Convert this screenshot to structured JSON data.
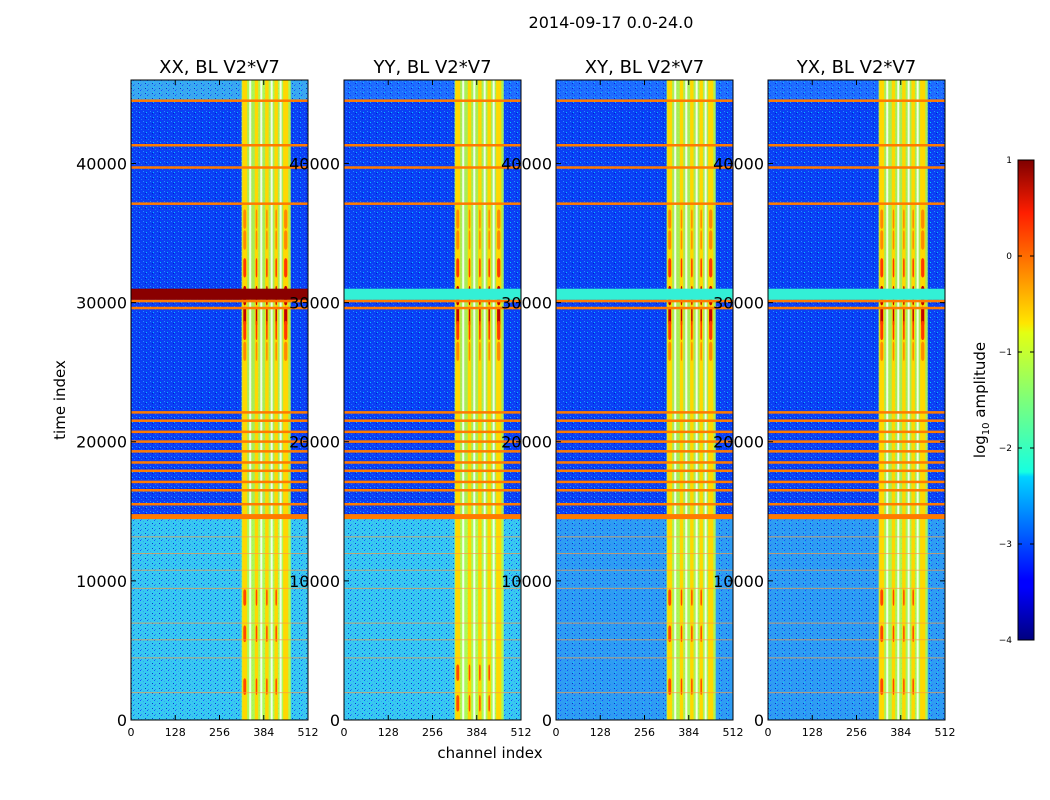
{
  "chart_data": {
    "type": "heatmap",
    "suptitle": "2014-09-17 0.0-24.0",
    "xlabel": "channel index",
    "ylabel": "time index",
    "xlim": [
      0,
      512
    ],
    "ylim": [
      0,
      46000
    ],
    "xticks": [
      0,
      128,
      256,
      384,
      512
    ],
    "xtick_labels": [
      "0",
      "128",
      "256",
      "384",
      "512"
    ],
    "yticks": [
      0,
      10000,
      20000,
      30000,
      40000
    ],
    "ytick_labels": [
      "0",
      "10000",
      "20000",
      "30000",
      "40000"
    ],
    "panels": [
      {
        "title": "XX, BL V2*V7",
        "pol": "XX"
      },
      {
        "title": "YY, BL V2*V7",
        "pol": "YY"
      },
      {
        "title": "XY, BL V2*V7",
        "pol": "XY"
      },
      {
        "title": "YX, BL V2*V7",
        "pol": "YX"
      }
    ],
    "colorbar": {
      "label": "log10 amplitude",
      "label_main": "log",
      "label_sub": "10",
      "label_rest": " amplitude",
      "range": [
        -4,
        1
      ],
      "ticks": [
        1,
        0,
        -1,
        -2,
        -3,
        -4
      ],
      "tick_labels": [
        "1",
        "0",
        "−1",
        "−2",
        "−3",
        "−4"
      ],
      "colormap": "jet"
    },
    "rfi_channel_bands": [
      [
        322,
        336
      ],
      [
        358,
        368
      ],
      [
        388,
        398
      ],
      [
        415,
        425
      ],
      [
        440,
        455
      ]
    ],
    "flagged_time_rows": [
      14800,
      15600,
      16600,
      17200,
      18000,
      18600,
      19400,
      20100,
      20800,
      21600,
      22200,
      29700,
      30200,
      37200,
      39800,
      41400,
      44600
    ]
  }
}
